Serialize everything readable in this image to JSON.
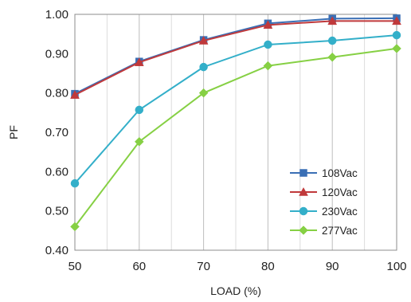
{
  "chart_data": {
    "type": "line",
    "xlabel": "LOAD (%)",
    "ylabel": "PF",
    "x": [
      50,
      60,
      70,
      80,
      90,
      100
    ],
    "xlim": [
      50,
      100
    ],
    "ylim": [
      0.4,
      1.0
    ],
    "x_ticks": [
      "50",
      "60",
      "70",
      "80",
      "90",
      "100"
    ],
    "y_ticks": [
      "0.40",
      "0.50",
      "0.60",
      "0.70",
      "0.80",
      "0.90",
      "1.00"
    ],
    "grid": "vertical",
    "legend_position": "bottom-right",
    "series": [
      {
        "name": "108Vac",
        "color": "#3a6fb5",
        "marker": "square",
        "values": [
          0.798,
          0.88,
          0.935,
          0.977,
          0.989,
          0.99
        ]
      },
      {
        "name": "120Vac",
        "color": "#c0393b",
        "marker": "triangle",
        "values": [
          0.795,
          0.878,
          0.933,
          0.973,
          0.983,
          0.983
        ]
      },
      {
        "name": "230Vac",
        "color": "#33afc9",
        "marker": "circle",
        "values": [
          0.57,
          0.757,
          0.866,
          0.923,
          0.933,
          0.947
        ]
      },
      {
        "name": "277Vac",
        "color": "#86d044",
        "marker": "diamond",
        "values": [
          0.46,
          0.676,
          0.8,
          0.869,
          0.891,
          0.913
        ]
      }
    ]
  }
}
